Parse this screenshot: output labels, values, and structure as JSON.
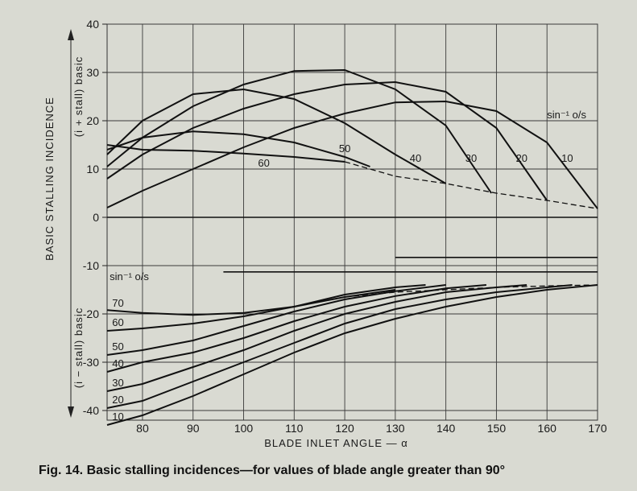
{
  "caption": "Fig. 14. Basic stalling incidences—for values of blade angle greater than 90°",
  "chart_data": {
    "type": "line",
    "xlabel": "BLADE INLET ANGLE — α",
    "ylabel": "BASIC STALLING INCIDENCE",
    "ylabel_upper": "(i + stall) basic",
    "ylabel_lower": "(i − stall) basic",
    "xlim": [
      73,
      170
    ],
    "ylim": [
      -42,
      40
    ],
    "xticks": [
      80,
      90,
      100,
      110,
      120,
      130,
      140,
      150,
      160,
      170
    ],
    "yticks": [
      40,
      30,
      20,
      10,
      0,
      -10,
      -20,
      -30,
      -40
    ],
    "grid": true,
    "upper_family_title": "sin⁻¹ o/s",
    "lower_family_title": "sin⁻¹ o/s",
    "upper_series": [
      {
        "name": "10",
        "x": [
          73,
          80,
          90,
          100,
          110,
          120,
          130,
          140,
          150,
          160,
          170
        ],
        "y": [
          2,
          5.5,
          10,
          14.5,
          18.5,
          21.5,
          23.8,
          24,
          22,
          15.5,
          1.8
        ]
      },
      {
        "name": "20",
        "x": [
          73,
          80,
          90,
          100,
          110,
          120,
          130,
          140,
          150,
          160
        ],
        "y": [
          8,
          13,
          18.5,
          22.5,
          25.5,
          27.5,
          28,
          26,
          18.5,
          3.5
        ]
      },
      {
        "name": "30",
        "x": [
          73,
          80,
          90,
          100,
          110,
          120,
          130,
          140,
          149
        ],
        "y": [
          10.5,
          16.5,
          23,
          27.5,
          30.3,
          30.5,
          26.5,
          19,
          5
        ]
      },
      {
        "name": "40",
        "x": [
          73,
          80,
          90,
          100,
          110,
          120,
          130,
          140
        ],
        "y": [
          13,
          20,
          25.5,
          26.5,
          24.5,
          19.5,
          13,
          7
        ]
      },
      {
        "name": "50",
        "x": [
          73,
          80,
          90,
          100,
          110,
          120,
          125
        ],
        "y": [
          14,
          16.5,
          17.8,
          17.2,
          15.5,
          12.5,
          10.5
        ]
      },
      {
        "name": "60",
        "x": [
          73,
          80,
          90,
          100,
          110,
          120
        ],
        "y": [
          15,
          14,
          13.8,
          13.2,
          12.5,
          11.5
        ]
      }
    ],
    "upper_dashed": {
      "x": [
        120,
        125,
        130,
        140,
        150,
        160,
        170
      ],
      "y": [
        11.5,
        10,
        8.5,
        7,
        5,
        3.5,
        1.8
      ]
    },
    "upper_labels": [
      {
        "text": "10",
        "x": 164,
        "y": 11.5
      },
      {
        "text": "20",
        "x": 155,
        "y": 11.5
      },
      {
        "text": "30",
        "x": 145,
        "y": 11.5
      },
      {
        "text": "40",
        "x": 134,
        "y": 11.5
      },
      {
        "text": "50",
        "x": 120,
        "y": 13.5
      },
      {
        "text": "60",
        "x": 104,
        "y": 10.5
      }
    ],
    "lower_hlines": [
      {
        "y": -8.3,
        "x": [
          130,
          170
        ]
      },
      {
        "y": -11.3,
        "x": [
          96,
          170
        ]
      }
    ],
    "lower_series": [
      {
        "name": "70",
        "x": [
          73,
          80,
          90,
          100,
          110,
          120,
          130
        ],
        "y": [
          -19.2,
          -19.8,
          -20.2,
          -19.8,
          -18.5,
          -16.5,
          -15
        ]
      },
      {
        "name": "60",
        "x": [
          73,
          80,
          90,
          100,
          110,
          120,
          130,
          136
        ],
        "y": [
          -23.5,
          -23,
          -22,
          -20.5,
          -18.5,
          -16,
          -14.5,
          -14
        ]
      },
      {
        "name": "50",
        "x": [
          73,
          80,
          90,
          100,
          110,
          120,
          130,
          140
        ],
        "y": [
          -28.5,
          -27.5,
          -25.5,
          -22.5,
          -19.5,
          -17,
          -15.3,
          -14
        ]
      },
      {
        "name": "40",
        "x": [
          73,
          80,
          90,
          100,
          110,
          120,
          130,
          140,
          148
        ],
        "y": [
          -32,
          -30,
          -28,
          -25,
          -21.5,
          -18.5,
          -16.3,
          -14.7,
          -14
        ]
      },
      {
        "name": "30",
        "x": [
          73,
          80,
          90,
          100,
          110,
          120,
          130,
          140,
          150,
          156
        ],
        "y": [
          -36,
          -34.5,
          -31,
          -27.5,
          -23.5,
          -20,
          -17.5,
          -15.5,
          -14.5,
          -14
        ]
      },
      {
        "name": "20",
        "x": [
          73,
          80,
          90,
          100,
          110,
          120,
          130,
          140,
          150,
          160,
          165
        ],
        "y": [
          -39.5,
          -38,
          -34,
          -30,
          -26,
          -22,
          -19,
          -17,
          -15.5,
          -14.5,
          -14
        ]
      },
      {
        "name": "10",
        "x": [
          73,
          80,
          90,
          100,
          110,
          120,
          130,
          140,
          150,
          160,
          170
        ],
        "y": [
          -43,
          -41,
          -37,
          -32.5,
          -28,
          -24,
          -21,
          -18.5,
          -16.5,
          -15,
          -14
        ]
      }
    ],
    "lower_dashed": {
      "x": [
        120,
        130,
        140,
        150,
        160,
        170
      ],
      "y": [
        -16.5,
        -15.5,
        -15,
        -14.5,
        -14.2,
        -14
      ]
    },
    "lower_labels": [
      {
        "text": "70",
        "x": 74,
        "y": -18.5
      },
      {
        "text": "60",
        "x": 74,
        "y": -22.5
      },
      {
        "text": "50",
        "x": 74,
        "y": -27.5
      },
      {
        "text": "40",
        "x": 74,
        "y": -31
      },
      {
        "text": "30",
        "x": 74,
        "y": -35
      },
      {
        "text": "20",
        "x": 74,
        "y": -38.5
      },
      {
        "text": "10",
        "x": 74,
        "y": -42
      }
    ]
  }
}
